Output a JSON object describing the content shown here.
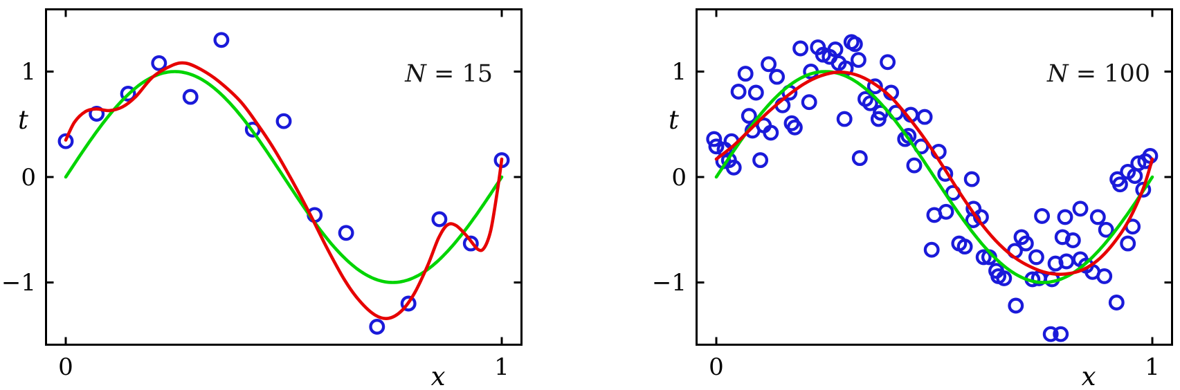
{
  "figure": {
    "background": "#ffffff",
    "colors": {
      "axis": "#000000",
      "data_points": "#1a1ad9",
      "true_function": "#00d400",
      "fitted_curve": "#e60000"
    }
  },
  "chart_data": [
    {
      "type": "scatter+line",
      "panel": "left",
      "annotation": {
        "variable": "N",
        "rest": " = 15"
      },
      "xlabel": "x",
      "ylabel": "t",
      "xlim": [
        -0.05,
        1.05
      ],
      "ylim": [
        -1.6,
        1.6
      ],
      "grid": false,
      "legend": "none",
      "x_ticks": [
        {
          "value": 0,
          "label": "0"
        },
        {
          "value": 1,
          "label": "1"
        }
      ],
      "y_ticks": [
        {
          "value": 1,
          "label": "1"
        },
        {
          "value": 0,
          "label": "0"
        },
        {
          "value": -1,
          "label": "−1"
        }
      ],
      "series": [
        {
          "name": "training-data",
          "type": "scatter",
          "marker": "circle",
          "color_key": "data_points",
          "points": [
            [
              0.0,
              0.34
            ],
            [
              0.071,
              0.6
            ],
            [
              0.143,
              0.79
            ],
            [
              0.214,
              1.08
            ],
            [
              0.286,
              0.76
            ],
            [
              0.357,
              1.3
            ],
            [
              0.429,
              0.45
            ],
            [
              0.5,
              0.53
            ],
            [
              0.571,
              -0.36
            ],
            [
              0.643,
              -0.53
            ],
            [
              0.714,
              -1.42
            ],
            [
              0.786,
              -1.2
            ],
            [
              0.857,
              -0.4
            ],
            [
              0.929,
              -0.63
            ],
            [
              1.0,
              0.16
            ]
          ]
        },
        {
          "name": "true-function",
          "type": "line",
          "color_key": "true_function",
          "formula": "sin(2*pi*x)",
          "x_range": [
            0,
            1
          ]
        },
        {
          "name": "polynomial-fit",
          "type": "line",
          "color_key": "fitted_curve",
          "points": [
            [
              0.0,
              0.35
            ],
            [
              0.02,
              0.52
            ],
            [
              0.045,
              0.62
            ],
            [
              0.07,
              0.645
            ],
            [
              0.1,
              0.63
            ],
            [
              0.13,
              0.665
            ],
            [
              0.16,
              0.76
            ],
            [
              0.2,
              0.95
            ],
            [
              0.245,
              1.06
            ],
            [
              0.275,
              1.08
            ],
            [
              0.31,
              1.02
            ],
            [
              0.35,
              0.91
            ],
            [
              0.4,
              0.72
            ],
            [
              0.44,
              0.5
            ],
            [
              0.48,
              0.25
            ],
            [
              0.52,
              -0.04
            ],
            [
              0.56,
              -0.35
            ],
            [
              0.6,
              -0.68
            ],
            [
              0.64,
              -0.98
            ],
            [
              0.675,
              -1.18
            ],
            [
              0.71,
              -1.31
            ],
            [
              0.74,
              -1.34
            ],
            [
              0.77,
              -1.27
            ],
            [
              0.8,
              -1.1
            ],
            [
              0.83,
              -0.84
            ],
            [
              0.855,
              -0.58
            ],
            [
              0.875,
              -0.455
            ],
            [
              0.895,
              -0.46
            ],
            [
              0.92,
              -0.56
            ],
            [
              0.945,
              -0.685
            ],
            [
              0.96,
              -0.67
            ],
            [
              0.975,
              -0.5
            ],
            [
              0.99,
              -0.13
            ],
            [
              1.0,
              0.17
            ]
          ]
        }
      ]
    },
    {
      "type": "scatter+line",
      "panel": "right",
      "annotation": {
        "variable": "N",
        "rest": " = 100"
      },
      "xlabel": "x",
      "ylabel": "t",
      "xlim": [
        -0.05,
        1.05
      ],
      "ylim": [
        -1.6,
        1.6
      ],
      "grid": false,
      "legend": "none",
      "x_ticks": [
        {
          "value": 0,
          "label": "0"
        },
        {
          "value": 1,
          "label": "1"
        }
      ],
      "y_ticks": [
        {
          "value": 1,
          "label": "1"
        },
        {
          "value": 0,
          "label": "0"
        },
        {
          "value": -1,
          "label": "−1"
        }
      ],
      "series": [
        {
          "name": "training-data",
          "type": "scatter",
          "marker": "circle",
          "color_key": "data_points",
          "points": [
            [
              -0.005,
              0.36
            ],
            [
              0.0,
              0.29
            ],
            [
              0.016,
              0.15
            ],
            [
              0.019,
              0.26
            ],
            [
              0.029,
              0.16
            ],
            [
              0.035,
              0.34
            ],
            [
              0.04,
              0.09
            ],
            [
              0.051,
              0.81
            ],
            [
              0.067,
              0.98
            ],
            [
              0.075,
              0.58
            ],
            [
              0.083,
              0.44
            ],
            [
              0.091,
              0.8
            ],
            [
              0.101,
              0.16
            ],
            [
              0.109,
              0.49
            ],
            [
              0.12,
              1.07
            ],
            [
              0.125,
              0.42
            ],
            [
              0.139,
              0.95
            ],
            [
              0.152,
              0.68
            ],
            [
              0.168,
              0.8
            ],
            [
              0.173,
              0.51
            ],
            [
              0.18,
              0.47
            ],
            [
              0.193,
              1.22
            ],
            [
              0.213,
              0.71
            ],
            [
              0.217,
              1.0
            ],
            [
              0.233,
              1.23
            ],
            [
              0.245,
              1.16
            ],
            [
              0.26,
              1.14
            ],
            [
              0.273,
              1.21
            ],
            [
              0.281,
              1.08
            ],
            [
              0.294,
              0.55
            ],
            [
              0.297,
              1.03
            ],
            [
              0.31,
              1.28
            ],
            [
              0.318,
              1.26
            ],
            [
              0.326,
              1.11
            ],
            [
              0.329,
              0.18
            ],
            [
              0.342,
              0.74
            ],
            [
              0.353,
              0.7
            ],
            [
              0.364,
              0.86
            ],
            [
              0.372,
              0.55
            ],
            [
              0.377,
              0.61
            ],
            [
              0.393,
              1.09
            ],
            [
              0.401,
              0.8
            ],
            [
              0.412,
              0.61
            ],
            [
              0.433,
              0.36
            ],
            [
              0.441,
              0.39
            ],
            [
              0.446,
              0.59
            ],
            [
              0.454,
              0.11
            ],
            [
              0.47,
              0.29
            ],
            [
              0.478,
              0.57
            ],
            [
              0.494,
              -0.69
            ],
            [
              0.5,
              -0.36
            ],
            [
              0.51,
              0.24
            ],
            [
              0.525,
              0.03
            ],
            [
              0.527,
              -0.33
            ],
            [
              0.543,
              -0.15
            ],
            [
              0.557,
              -0.63
            ],
            [
              0.57,
              -0.66
            ],
            [
              0.586,
              -0.02
            ],
            [
              0.589,
              -0.41
            ],
            [
              0.59,
              -0.3
            ],
            [
              0.607,
              -0.38
            ],
            [
              0.613,
              -0.76
            ],
            [
              0.626,
              -0.76
            ],
            [
              0.642,
              -0.89
            ],
            [
              0.647,
              -0.94
            ],
            [
              0.66,
              -0.96
            ],
            [
              0.685,
              -0.7
            ],
            [
              0.687,
              -1.22
            ],
            [
              0.7,
              -0.57
            ],
            [
              0.71,
              -0.63
            ],
            [
              0.725,
              -0.97
            ],
            [
              0.734,
              -0.76
            ],
            [
              0.74,
              -0.96
            ],
            [
              0.747,
              -0.37
            ],
            [
              0.767,
              -1.49
            ],
            [
              0.77,
              -0.97
            ],
            [
              0.778,
              -0.82
            ],
            [
              0.79,
              -1.49
            ],
            [
              0.794,
              -0.57
            ],
            [
              0.8,
              -0.38
            ],
            [
              0.803,
              -0.8
            ],
            [
              0.818,
              -0.6
            ],
            [
              0.835,
              -0.3
            ],
            [
              0.835,
              -0.78
            ],
            [
              0.848,
              -0.84
            ],
            [
              0.863,
              -0.9
            ],
            [
              0.875,
              -0.38
            ],
            [
              0.89,
              -0.94
            ],
            [
              0.894,
              -0.5
            ],
            [
              0.918,
              -1.19
            ],
            [
              0.92,
              -0.02
            ],
            [
              0.926,
              -0.07
            ],
            [
              0.944,
              0.05
            ],
            [
              0.944,
              -0.63
            ],
            [
              0.955,
              -0.47
            ],
            [
              0.96,
              0.01
            ],
            [
              0.968,
              0.13
            ],
            [
              0.979,
              -0.12
            ],
            [
              0.984,
              0.15
            ],
            [
              0.995,
              0.2
            ]
          ]
        },
        {
          "name": "true-function",
          "type": "line",
          "color_key": "true_function",
          "formula": "sin(2*pi*x)",
          "x_range": [
            0,
            1
          ]
        },
        {
          "name": "polynomial-fit",
          "type": "line",
          "color_key": "fitted_curve",
          "points": [
            [
              0.0,
              0.17
            ],
            [
              0.04,
              0.3
            ],
            [
              0.08,
              0.46
            ],
            [
              0.12,
              0.62
            ],
            [
              0.16,
              0.76
            ],
            [
              0.2,
              0.88
            ],
            [
              0.24,
              0.96
            ],
            [
              0.28,
              0.995
            ],
            [
              0.32,
              0.97
            ],
            [
              0.36,
              0.89
            ],
            [
              0.4,
              0.76
            ],
            [
              0.44,
              0.57
            ],
            [
              0.48,
              0.35
            ],
            [
              0.52,
              0.1
            ],
            [
              0.56,
              -0.16
            ],
            [
              0.6,
              -0.4
            ],
            [
              0.64,
              -0.6
            ],
            [
              0.68,
              -0.75
            ],
            [
              0.72,
              -0.85
            ],
            [
              0.76,
              -0.91
            ],
            [
              0.8,
              -0.92
            ],
            [
              0.84,
              -0.88
            ],
            [
              0.88,
              -0.77
            ],
            [
              0.92,
              -0.58
            ],
            [
              0.95,
              -0.38
            ],
            [
              0.98,
              -0.1
            ],
            [
              1.0,
              0.17
            ]
          ]
        }
      ]
    }
  ]
}
